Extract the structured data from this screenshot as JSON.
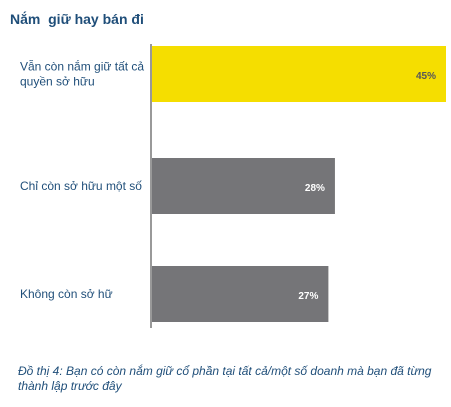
{
  "chart_data": {
    "type": "bar",
    "orientation": "horizontal",
    "title": "Nắm  giữ hay bán đi",
    "categories": [
      [
        "Vẫn còn nắm giữ tất cả",
        "quyền sở hữu"
      ],
      [
        "Chỉ còn sở hữu một số"
      ],
      [
        "Không còn sở hữ"
      ]
    ],
    "values": [
      45,
      28,
      27
    ],
    "value_labels": [
      "45%",
      "28%",
      "27%"
    ],
    "bar_colors": [
      "#f5de00",
      "#757578",
      "#757578"
    ],
    "value_label_colors": [
      "#55555a",
      "#ffffff",
      "#ffffff"
    ],
    "xlim": [
      0,
      45
    ],
    "grid": false,
    "legend": "none"
  },
  "caption": "Đồ thị 4: Bạn có còn nắm giữ cổ phần tại tất cả/một số doanh mà bạn đã từng thành lập trước đây"
}
